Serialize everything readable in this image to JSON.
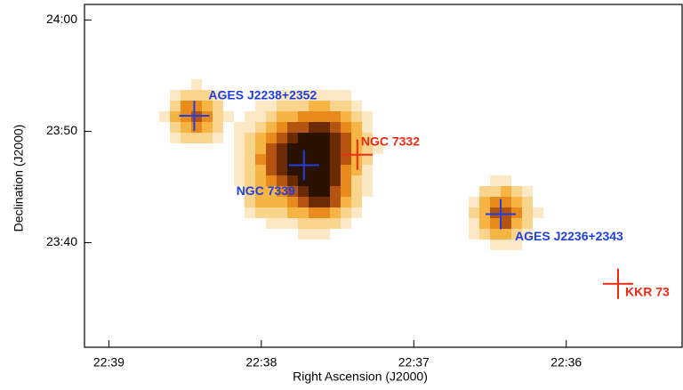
{
  "chart_data": {
    "type": "scatter",
    "x_label": "Right Ascension (J2000)",
    "y_label": "Declination (J2000)",
    "xlim": [
      39.16,
      35.24
    ],
    "ylim": [
      30.6,
      61.4
    ],
    "xticks": [
      {
        "value": 39,
        "label": "22:39"
      },
      {
        "value": 38,
        "label": "22:38"
      },
      {
        "value": 37,
        "label": "22:37"
      },
      {
        "value": 36,
        "label": "22:36"
      }
    ],
    "yticks": [
      {
        "value": 60,
        "label": "24:00"
      },
      {
        "value": 50,
        "label": "23:50"
      },
      {
        "value": 40,
        "label": "23:40"
      }
    ],
    "series": [
      {
        "color": "#1f3fe0",
        "x": [
          38.44,
          37.72,
          36.43
        ],
        "values": [
          51.4,
          46.96,
          42.56
        ],
        "labels": [
          "AGES J2238+2352",
          "NGC 7339",
          "AGES J2236+2343"
        ]
      },
      {
        "color": "#f02a10",
        "x": [
          37.37,
          35.66
        ],
        "values": [
          47.9,
          36.3
        ],
        "labels": [
          "NGC 7332",
          "KKR 73"
        ]
      }
    ]
  }
}
